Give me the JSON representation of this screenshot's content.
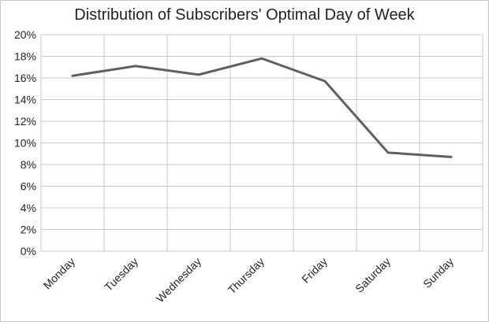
{
  "chart_data": {
    "type": "line",
    "title": "Distribution of Subscribers' Optimal Day of Week",
    "categories": [
      "Monday",
      "Tuesday",
      "Wednesday",
      "Thursday",
      "Friday",
      "Saturday",
      "Sunday"
    ],
    "series": [
      {
        "values": [
          16.2,
          17.1,
          16.3,
          17.8,
          15.7,
          9.1,
          8.7
        ],
        "color": "#606060"
      }
    ],
    "ylim": [
      0,
      20
    ],
    "yticks": [
      "0%",
      "2%",
      "4%",
      "6%",
      "8%",
      "10%",
      "12%",
      "14%",
      "16%",
      "18%",
      "20%"
    ],
    "grid": true,
    "xlabel": "",
    "ylabel": ""
  }
}
